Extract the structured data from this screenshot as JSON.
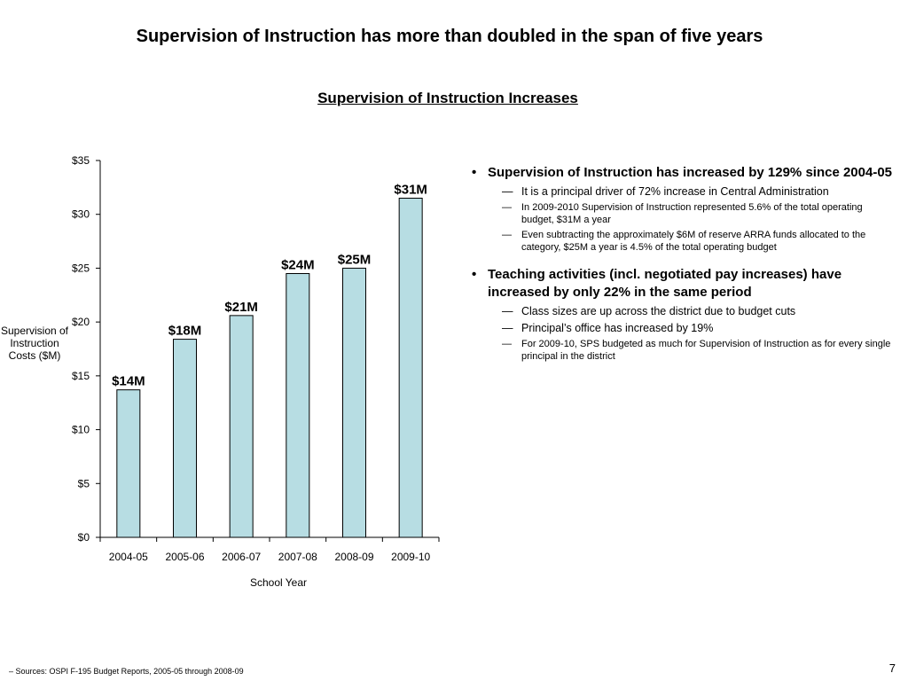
{
  "title": "Supervision of Instruction has more than doubled in the span of five years",
  "subtitle": "Supervision of Instruction Increases",
  "chart_data": {
    "type": "bar",
    "categories": [
      "2004-05",
      "2005-06",
      "2006-07",
      "2007-08",
      "2008-09",
      "2009-10"
    ],
    "values": [
      13.7,
      18.4,
      20.6,
      24.5,
      25.0,
      31.5
    ],
    "data_labels": [
      "$14M",
      "$18M",
      "$21M",
      "$24M",
      "$25M",
      "$31M"
    ],
    "ylim": [
      0,
      35
    ],
    "yticks": [
      0,
      5,
      10,
      15,
      20,
      25,
      30,
      35
    ],
    "ytick_labels": [
      "$0",
      "$5",
      "$10",
      "$15",
      "$20",
      "$25",
      "$30",
      "$35"
    ],
    "ylabel": "Supervision of Instruction Costs ($M)",
    "xlabel": "School Year",
    "bar_color": "#b7dde3",
    "grid": false
  },
  "bullets": [
    {
      "text": "Supervision of Instruction has increased by 129% since 2004-05",
      "subs": [
        "It is a principal driver of 72% increase in Central Administration",
        "In 2009-2010 Supervision of Instruction represented 5.6% of the total operating budget, $31M a year",
        "Even subtracting the approximately $6M of reserve ARRA funds allocated to the category, $25M a year is 4.5% of the total operating budget"
      ]
    },
    {
      "text": "Teaching activities (incl. negotiated pay increases) have increased by only 22% in the same period",
      "subs": [
        "Class sizes are up across the district due to budget cuts",
        "Principal’s office has increased by 19%",
        "For 2009-10, SPS budgeted as much for Supervision of Instruction as for every single principal in the district"
      ]
    }
  ],
  "bullet_symbol": "•",
  "dash_symbol": "—",
  "footer": "– Sources: OSPI F-195 Budget Reports, 2005-05 through 2008-09",
  "page_number": "7"
}
